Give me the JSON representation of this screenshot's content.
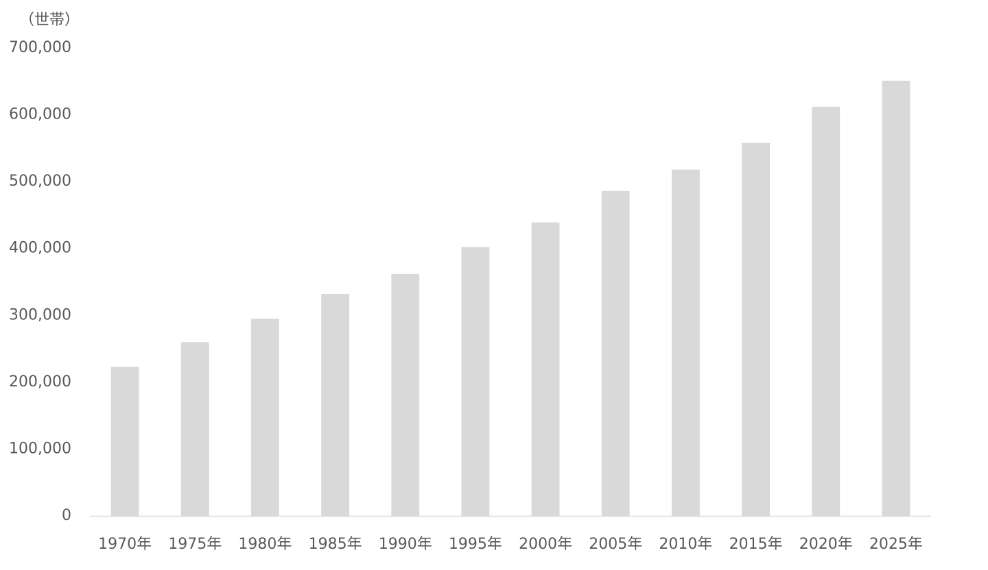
{
  "chart_data": {
    "type": "bar",
    "y_label": "（世帯）",
    "categories": [
      "1970年",
      "1975年",
      "1980年",
      "1985年",
      "1990年",
      "1995年",
      "2000年",
      "2005年",
      "2010年",
      "2015年",
      "2020年",
      "2025年"
    ],
    "values": [
      223000,
      260000,
      295000,
      332000,
      362000,
      402000,
      439000,
      486000,
      518000,
      558000,
      612000,
      651000
    ],
    "color": "#d9d9d9",
    "ylim": [
      0,
      700000
    ],
    "yticks": [
      0,
      {
        "value": 100000,
        "label": "100,000"
      },
      {
        "value": 200000,
        "label": "200,000"
      },
      {
        "value": 300000,
        "label": "300,000"
      },
      {
        "value": 400000,
        "label": "400,000"
      },
      {
        "value": 500000,
        "label": "500,000"
      },
      {
        "value": 600000,
        "label": "600,000"
      },
      {
        "value": 700000,
        "label": "700,000"
      }
    ],
    "grid": false
  }
}
